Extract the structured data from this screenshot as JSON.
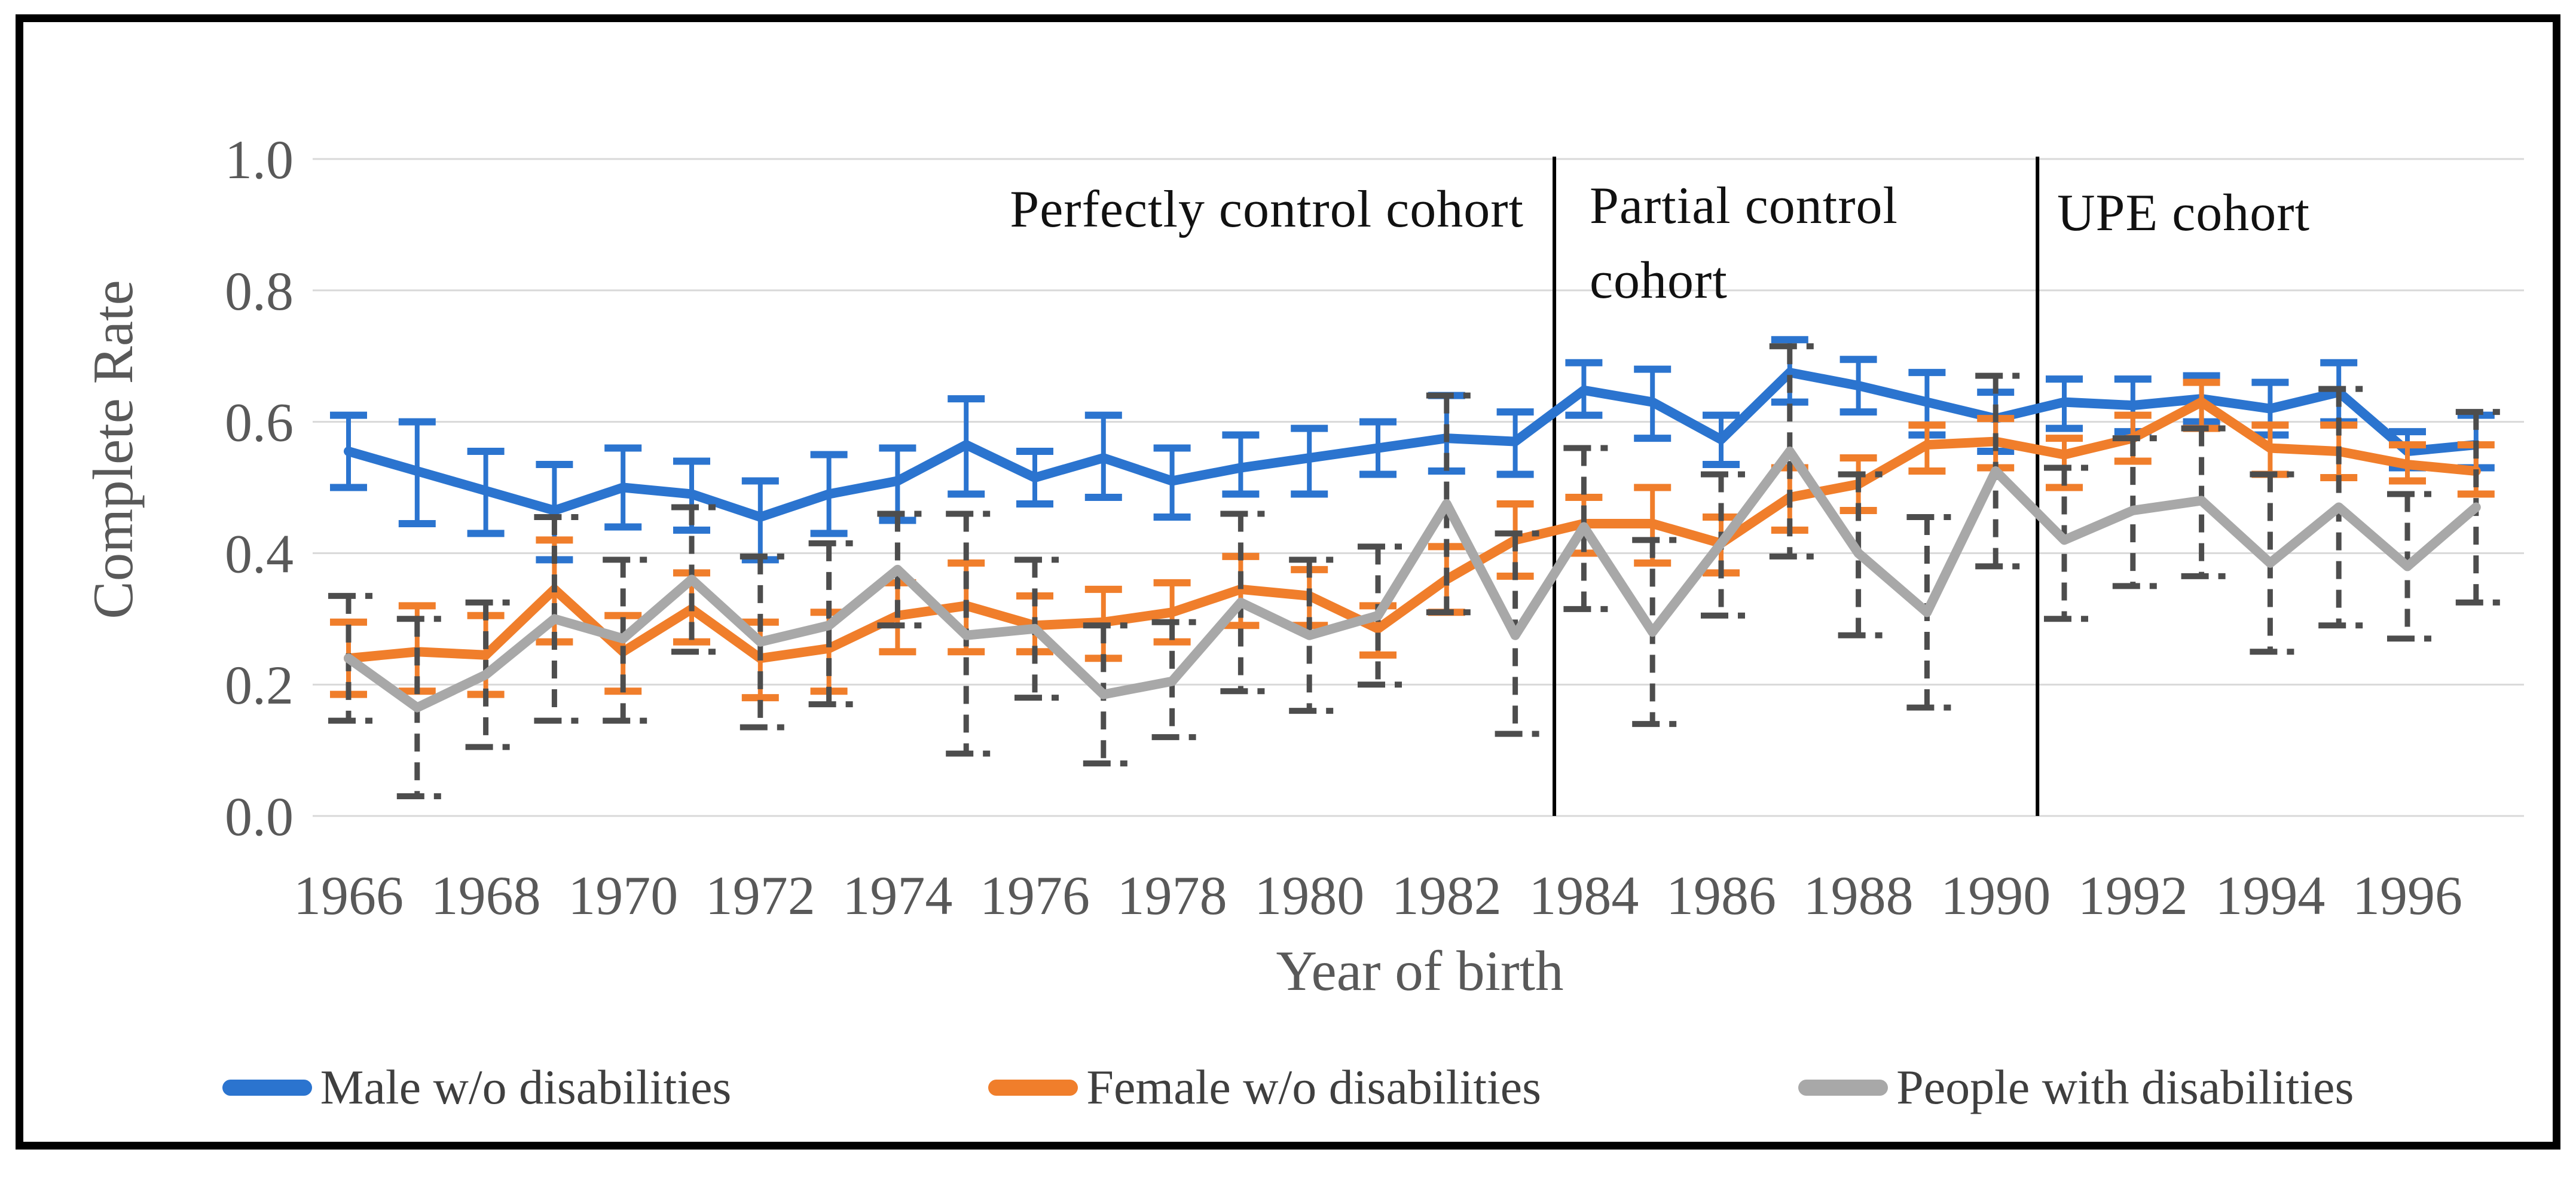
{
  "figure": {
    "annotations": {
      "region1": "Perfectly control cohort",
      "region2": "Partial control cohort",
      "region3": "UPE cohort"
    },
    "axis_text_color": "#595959",
    "annotation_text_color": "#111111"
  },
  "chart_data": {
    "type": "line",
    "title": "",
    "xlabel": "Year of birth",
    "ylabel": "Complete Rate",
    "x": [
      1966,
      1967,
      1968,
      1969,
      1970,
      1971,
      1972,
      1973,
      1974,
      1975,
      1976,
      1977,
      1978,
      1979,
      1980,
      1981,
      1982,
      1983,
      1984,
      1985,
      1986,
      1987,
      1988,
      1989,
      1990,
      1991,
      1992,
      1993,
      1994,
      1995,
      1996,
      1997
    ],
    "x_tick_labels": [
      "1966",
      "1968",
      "1970",
      "1972",
      "1974",
      "1976",
      "1978",
      "1980",
      "1982",
      "1984",
      "1986",
      "1988",
      "1990",
      "1992",
      "1994",
      "1996"
    ],
    "y_tick_labels": [
      "0.0",
      "0.2",
      "0.4",
      "0.6",
      "0.8",
      "1.0"
    ],
    "y_ticks": [
      0.0,
      0.2,
      0.4,
      0.6,
      0.8,
      1.0
    ],
    "ylim": [
      0.0,
      1.0
    ],
    "grid": true,
    "legend_position": "bottom",
    "region_dividers_x": [
      1983.57,
      1990.61
    ],
    "series": [
      {
        "name": "Male w/o disabilities",
        "color": "#2B74CF",
        "error_style": "solid",
        "values": [
          0.555,
          0.525,
          0.495,
          0.465,
          0.5,
          0.49,
          0.455,
          0.49,
          0.51,
          0.565,
          0.515,
          0.545,
          0.51,
          0.53,
          0.545,
          0.56,
          0.575,
          0.57,
          0.648,
          0.63,
          0.573,
          0.675,
          0.655,
          0.63,
          0.605,
          0.63,
          0.625,
          0.635,
          0.62,
          0.645,
          0.555,
          0.565
        ],
        "err_low": [
          0.5,
          0.445,
          0.43,
          0.39,
          0.44,
          0.435,
          0.39,
          0.43,
          0.45,
          0.49,
          0.475,
          0.485,
          0.455,
          0.49,
          0.49,
          0.52,
          0.525,
          0.52,
          0.61,
          0.575,
          0.535,
          0.63,
          0.615,
          0.58,
          0.555,
          0.59,
          0.585,
          0.6,
          0.58,
          0.6,
          0.53,
          0.53
        ],
        "err_high": [
          0.61,
          0.6,
          0.555,
          0.535,
          0.56,
          0.54,
          0.51,
          0.55,
          0.56,
          0.635,
          0.555,
          0.61,
          0.56,
          0.58,
          0.59,
          0.6,
          0.64,
          0.615,
          0.69,
          0.68,
          0.61,
          0.725,
          0.695,
          0.675,
          0.645,
          0.665,
          0.665,
          0.67,
          0.66,
          0.69,
          0.585,
          0.61
        ]
      },
      {
        "name": "Female w/o disabilities",
        "color": "#F07E2B",
        "error_style": "solid",
        "values": [
          0.24,
          0.25,
          0.245,
          0.345,
          0.25,
          0.315,
          0.24,
          0.255,
          0.305,
          0.32,
          0.29,
          0.295,
          0.31,
          0.345,
          0.335,
          0.285,
          0.36,
          0.42,
          0.445,
          0.445,
          0.415,
          0.485,
          0.505,
          0.565,
          0.57,
          0.55,
          0.575,
          0.63,
          0.56,
          0.555,
          0.535,
          0.525
        ],
        "err_low": [
          0.185,
          0.19,
          0.185,
          0.265,
          0.19,
          0.265,
          0.18,
          0.19,
          0.25,
          0.25,
          0.25,
          0.24,
          0.265,
          0.29,
          0.29,
          0.245,
          0.31,
          0.365,
          0.4,
          0.385,
          0.37,
          0.435,
          0.465,
          0.525,
          0.53,
          0.5,
          0.54,
          0.59,
          0.52,
          0.515,
          0.51,
          0.49
        ],
        "err_high": [
          0.295,
          0.32,
          0.305,
          0.42,
          0.305,
          0.37,
          0.295,
          0.31,
          0.355,
          0.385,
          0.335,
          0.345,
          0.355,
          0.395,
          0.375,
          0.32,
          0.41,
          0.475,
          0.485,
          0.5,
          0.455,
          0.53,
          0.545,
          0.595,
          0.605,
          0.575,
          0.61,
          0.66,
          0.595,
          0.595,
          0.565,
          0.565
        ]
      },
      {
        "name": "People with disabilities",
        "color": "#A8A8A8",
        "error_style": "dashed",
        "error_color": "#4D4D4D",
        "values": [
          0.24,
          0.165,
          0.215,
          0.3,
          0.27,
          0.36,
          0.265,
          0.29,
          0.375,
          0.275,
          0.285,
          0.185,
          0.205,
          0.325,
          0.275,
          0.305,
          0.475,
          0.275,
          0.44,
          0.28,
          0.415,
          0.555,
          0.4,
          0.31,
          0.525,
          0.42,
          0.465,
          0.48,
          0.385,
          0.47,
          0.38,
          0.47
        ],
        "err_low": [
          0.145,
          0.03,
          0.105,
          0.145,
          0.145,
          0.25,
          0.135,
          0.17,
          0.29,
          0.095,
          0.18,
          0.08,
          0.12,
          0.19,
          0.16,
          0.2,
          0.31,
          0.125,
          0.315,
          0.14,
          0.305,
          0.395,
          0.275,
          0.165,
          0.38,
          0.3,
          0.35,
          0.365,
          0.25,
          0.29,
          0.27,
          0.325
        ],
        "err_high": [
          0.335,
          0.3,
          0.325,
          0.455,
          0.39,
          0.47,
          0.395,
          0.415,
          0.46,
          0.46,
          0.39,
          0.29,
          0.295,
          0.46,
          0.39,
          0.41,
          0.64,
          0.43,
          0.56,
          0.42,
          0.52,
          0.715,
          0.52,
          0.455,
          0.67,
          0.53,
          0.575,
          0.59,
          0.52,
          0.65,
          0.49,
          0.615
        ]
      }
    ]
  }
}
